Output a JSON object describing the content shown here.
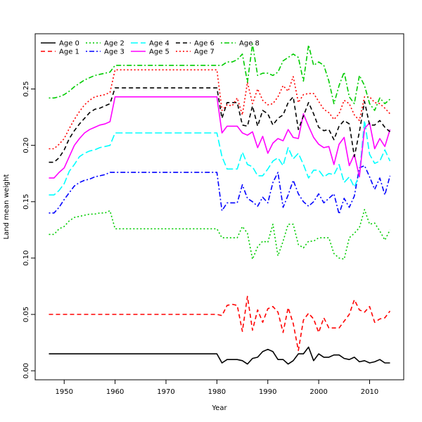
{
  "chart_data": {
    "type": "line",
    "title": "",
    "xlabel": "Year",
    "ylabel": "Land mean weight",
    "xlim": [
      1944.3,
      2016.7
    ],
    "ylim": [
      -0.008,
      0.299
    ],
    "x_ticks": [
      1950,
      1960,
      1970,
      1980,
      1990,
      2000,
      2010
    ],
    "y_ticks": [
      0.0,
      0.05,
      0.1,
      0.15,
      0.2,
      0.25
    ],
    "y_tick_labels": [
      "0.00",
      "0.05",
      "0.10",
      "0.15",
      "0.20",
      "0.25"
    ],
    "legend_position": "top-left",
    "grid": false,
    "x": [
      1947,
      1948,
      1949,
      1950,
      1951,
      1952,
      1953,
      1954,
      1955,
      1956,
      1957,
      1958,
      1959,
      1960,
      1961,
      1962,
      1963,
      1964,
      1965,
      1966,
      1967,
      1968,
      1969,
      1970,
      1971,
      1972,
      1973,
      1974,
      1975,
      1976,
      1977,
      1978,
      1979,
      1980,
      1981,
      1982,
      1983,
      1984,
      1985,
      1986,
      1987,
      1988,
      1989,
      1990,
      1991,
      1992,
      1993,
      1994,
      1995,
      1996,
      1997,
      1998,
      1999,
      2000,
      2001,
      2002,
      2003,
      2004,
      2005,
      2006,
      2007,
      2008,
      2009,
      2010,
      2011,
      2012,
      2013,
      2014
    ],
    "series": [
      {
        "name": "Age 0",
        "color": "#000000",
        "dash": "solid",
        "values": [
          0.015,
          0.015,
          0.015,
          0.015,
          0.015,
          0.015,
          0.015,
          0.015,
          0.015,
          0.015,
          0.015,
          0.015,
          0.015,
          0.015,
          0.015,
          0.015,
          0.015,
          0.015,
          0.015,
          0.015,
          0.015,
          0.015,
          0.015,
          0.015,
          0.015,
          0.015,
          0.015,
          0.015,
          0.015,
          0.015,
          0.015,
          0.015,
          0.015,
          0.015,
          0.007,
          0.01,
          0.01,
          0.01,
          0.009,
          0.006,
          0.011,
          0.012,
          0.017,
          0.019,
          0.017,
          0.01,
          0.01,
          0.006,
          0.009,
          0.015,
          0.015,
          0.021,
          0.009,
          0.015,
          0.012,
          0.012,
          0.014,
          0.014,
          0.011,
          0.01,
          0.012,
          0.008,
          0.009,
          0.007,
          0.008,
          0.01,
          0.007,
          0.007
        ]
      },
      {
        "name": "Age 1",
        "color": "#ff0000",
        "dash": "dashed",
        "values": [
          0.05,
          0.05,
          0.05,
          0.05,
          0.05,
          0.05,
          0.05,
          0.05,
          0.05,
          0.05,
          0.05,
          0.05,
          0.05,
          0.05,
          0.05,
          0.05,
          0.05,
          0.05,
          0.05,
          0.05,
          0.05,
          0.05,
          0.05,
          0.05,
          0.05,
          0.05,
          0.05,
          0.05,
          0.05,
          0.05,
          0.05,
          0.05,
          0.05,
          0.05,
          0.049,
          0.058,
          0.059,
          0.058,
          0.035,
          0.066,
          0.036,
          0.054,
          0.043,
          0.055,
          0.057,
          0.052,
          0.034,
          0.056,
          0.042,
          0.018,
          0.045,
          0.051,
          0.046,
          0.034,
          0.047,
          0.038,
          0.038,
          0.038,
          0.044,
          0.05,
          0.063,
          0.054,
          0.052,
          0.057,
          0.043,
          0.046,
          0.047,
          0.053
        ]
      },
      {
        "name": "Age 2",
        "color": "#00cc00",
        "dash": "dotted",
        "values": [
          0.121,
          0.121,
          0.126,
          0.128,
          0.133,
          0.136,
          0.137,
          0.138,
          0.139,
          0.139,
          0.14,
          0.14,
          0.142,
          0.126,
          0.126,
          0.126,
          0.126,
          0.126,
          0.126,
          0.126,
          0.126,
          0.126,
          0.126,
          0.126,
          0.126,
          0.126,
          0.126,
          0.126,
          0.126,
          0.126,
          0.126,
          0.126,
          0.126,
          0.126,
          0.118,
          0.118,
          0.118,
          0.118,
          0.128,
          0.122,
          0.099,
          0.11,
          0.115,
          0.114,
          0.13,
          0.102,
          0.115,
          0.13,
          0.13,
          0.112,
          0.109,
          0.115,
          0.115,
          0.118,
          0.118,
          0.118,
          0.104,
          0.1,
          0.099,
          0.118,
          0.122,
          0.127,
          0.143,
          0.13,
          0.131,
          0.124,
          0.116,
          0.125
        ]
      },
      {
        "name": "Age 3",
        "color": "#0000ff",
        "dash": "dashdot",
        "values": [
          0.14,
          0.14,
          0.145,
          0.152,
          0.158,
          0.164,
          0.167,
          0.169,
          0.17,
          0.172,
          0.173,
          0.174,
          0.176,
          0.176,
          0.176,
          0.176,
          0.176,
          0.176,
          0.176,
          0.176,
          0.176,
          0.176,
          0.176,
          0.176,
          0.176,
          0.176,
          0.176,
          0.176,
          0.176,
          0.176,
          0.176,
          0.176,
          0.176,
          0.176,
          0.142,
          0.149,
          0.149,
          0.149,
          0.165,
          0.153,
          0.15,
          0.146,
          0.154,
          0.149,
          0.167,
          0.176,
          0.145,
          0.156,
          0.169,
          0.157,
          0.15,
          0.146,
          0.15,
          0.157,
          0.149,
          0.153,
          0.157,
          0.139,
          0.153,
          0.145,
          0.155,
          0.18,
          0.182,
          0.172,
          0.161,
          0.171,
          0.156,
          0.173
        ]
      },
      {
        "name": "Age 4",
        "color": "#00ffff",
        "dash": "longdash",
        "values": [
          0.156,
          0.156,
          0.16,
          0.166,
          0.177,
          0.183,
          0.19,
          0.193,
          0.195,
          0.196,
          0.198,
          0.199,
          0.2,
          0.211,
          0.211,
          0.211,
          0.211,
          0.211,
          0.211,
          0.211,
          0.211,
          0.211,
          0.211,
          0.211,
          0.211,
          0.211,
          0.211,
          0.211,
          0.211,
          0.211,
          0.211,
          0.211,
          0.211,
          0.211,
          0.19,
          0.179,
          0.179,
          0.179,
          0.194,
          0.183,
          0.181,
          0.173,
          0.173,
          0.179,
          0.186,
          0.189,
          0.182,
          0.198,
          0.188,
          0.193,
          0.183,
          0.171,
          0.178,
          0.178,
          0.172,
          0.175,
          0.174,
          0.183,
          0.167,
          0.172,
          0.163,
          0.174,
          0.222,
          0.192,
          0.184,
          0.186,
          0.196,
          0.186
        ]
      },
      {
        "name": "Age 5",
        "color": "#ff00ff",
        "dash": "solid",
        "values": [
          0.171,
          0.171,
          0.176,
          0.18,
          0.19,
          0.2,
          0.206,
          0.211,
          0.214,
          0.216,
          0.218,
          0.219,
          0.221,
          0.243,
          0.243,
          0.243,
          0.243,
          0.243,
          0.243,
          0.243,
          0.243,
          0.243,
          0.243,
          0.243,
          0.243,
          0.243,
          0.243,
          0.243,
          0.243,
          0.243,
          0.243,
          0.243,
          0.243,
          0.243,
          0.211,
          0.217,
          0.217,
          0.217,
          0.211,
          0.209,
          0.212,
          0.198,
          0.208,
          0.193,
          0.202,
          0.206,
          0.204,
          0.214,
          0.207,
          0.206,
          0.228,
          0.217,
          0.207,
          0.201,
          0.198,
          0.199,
          0.183,
          0.201,
          0.207,
          0.182,
          0.192,
          0.172,
          0.215,
          0.22,
          0.197,
          0.206,
          0.199,
          0.214
        ]
      },
      {
        "name": "Age 6",
        "color": "#000000",
        "dash": "dashed",
        "values": [
          0.185,
          0.185,
          0.189,
          0.196,
          0.206,
          0.213,
          0.219,
          0.224,
          0.229,
          0.232,
          0.233,
          0.235,
          0.237,
          0.251,
          0.251,
          0.251,
          0.251,
          0.251,
          0.251,
          0.251,
          0.251,
          0.251,
          0.251,
          0.251,
          0.251,
          0.251,
          0.251,
          0.251,
          0.251,
          0.251,
          0.251,
          0.251,
          0.251,
          0.251,
          0.224,
          0.238,
          0.238,
          0.238,
          0.218,
          0.217,
          0.235,
          0.217,
          0.231,
          0.228,
          0.218,
          0.224,
          0.227,
          0.238,
          0.243,
          0.214,
          0.226,
          0.238,
          0.228,
          0.216,
          0.213,
          0.214,
          0.205,
          0.217,
          0.222,
          0.219,
          0.19,
          0.212,
          0.239,
          0.218,
          0.218,
          0.222,
          0.216,
          0.212
        ]
      },
      {
        "name": "Age 7",
        "color": "#ff0000",
        "dash": "dotted",
        "values": [
          0.197,
          0.197,
          0.201,
          0.206,
          0.215,
          0.223,
          0.23,
          0.236,
          0.24,
          0.243,
          0.244,
          0.245,
          0.247,
          0.267,
          0.267,
          0.267,
          0.267,
          0.267,
          0.267,
          0.267,
          0.267,
          0.267,
          0.267,
          0.267,
          0.267,
          0.267,
          0.267,
          0.267,
          0.267,
          0.267,
          0.267,
          0.267,
          0.267,
          0.267,
          0.231,
          0.236,
          0.235,
          0.242,
          0.227,
          0.256,
          0.237,
          0.25,
          0.24,
          0.236,
          0.237,
          0.243,
          0.253,
          0.248,
          0.261,
          0.238,
          0.245,
          0.246,
          0.246,
          0.239,
          0.232,
          0.229,
          0.223,
          0.228,
          0.24,
          0.237,
          0.227,
          0.222,
          0.243,
          0.243,
          0.238,
          0.237,
          0.233,
          0.228
        ]
      },
      {
        "name": "Age 8",
        "color": "#00cc00",
        "dash": "dashdot",
        "values": [
          0.242,
          0.242,
          0.243,
          0.245,
          0.248,
          0.252,
          0.255,
          0.258,
          0.26,
          0.262,
          0.263,
          0.264,
          0.265,
          0.271,
          0.271,
          0.271,
          0.271,
          0.271,
          0.271,
          0.271,
          0.271,
          0.271,
          0.271,
          0.271,
          0.271,
          0.271,
          0.271,
          0.271,
          0.271,
          0.271,
          0.271,
          0.271,
          0.271,
          0.271,
          0.271,
          0.274,
          0.274,
          0.276,
          0.281,
          0.256,
          0.29,
          0.262,
          0.264,
          0.264,
          0.262,
          0.265,
          0.275,
          0.278,
          0.281,
          0.278,
          0.257,
          0.289,
          0.271,
          0.274,
          0.271,
          0.257,
          0.237,
          0.253,
          0.265,
          0.243,
          0.237,
          0.262,
          0.253,
          0.237,
          0.231,
          0.242,
          0.237,
          0.241
        ]
      }
    ]
  }
}
